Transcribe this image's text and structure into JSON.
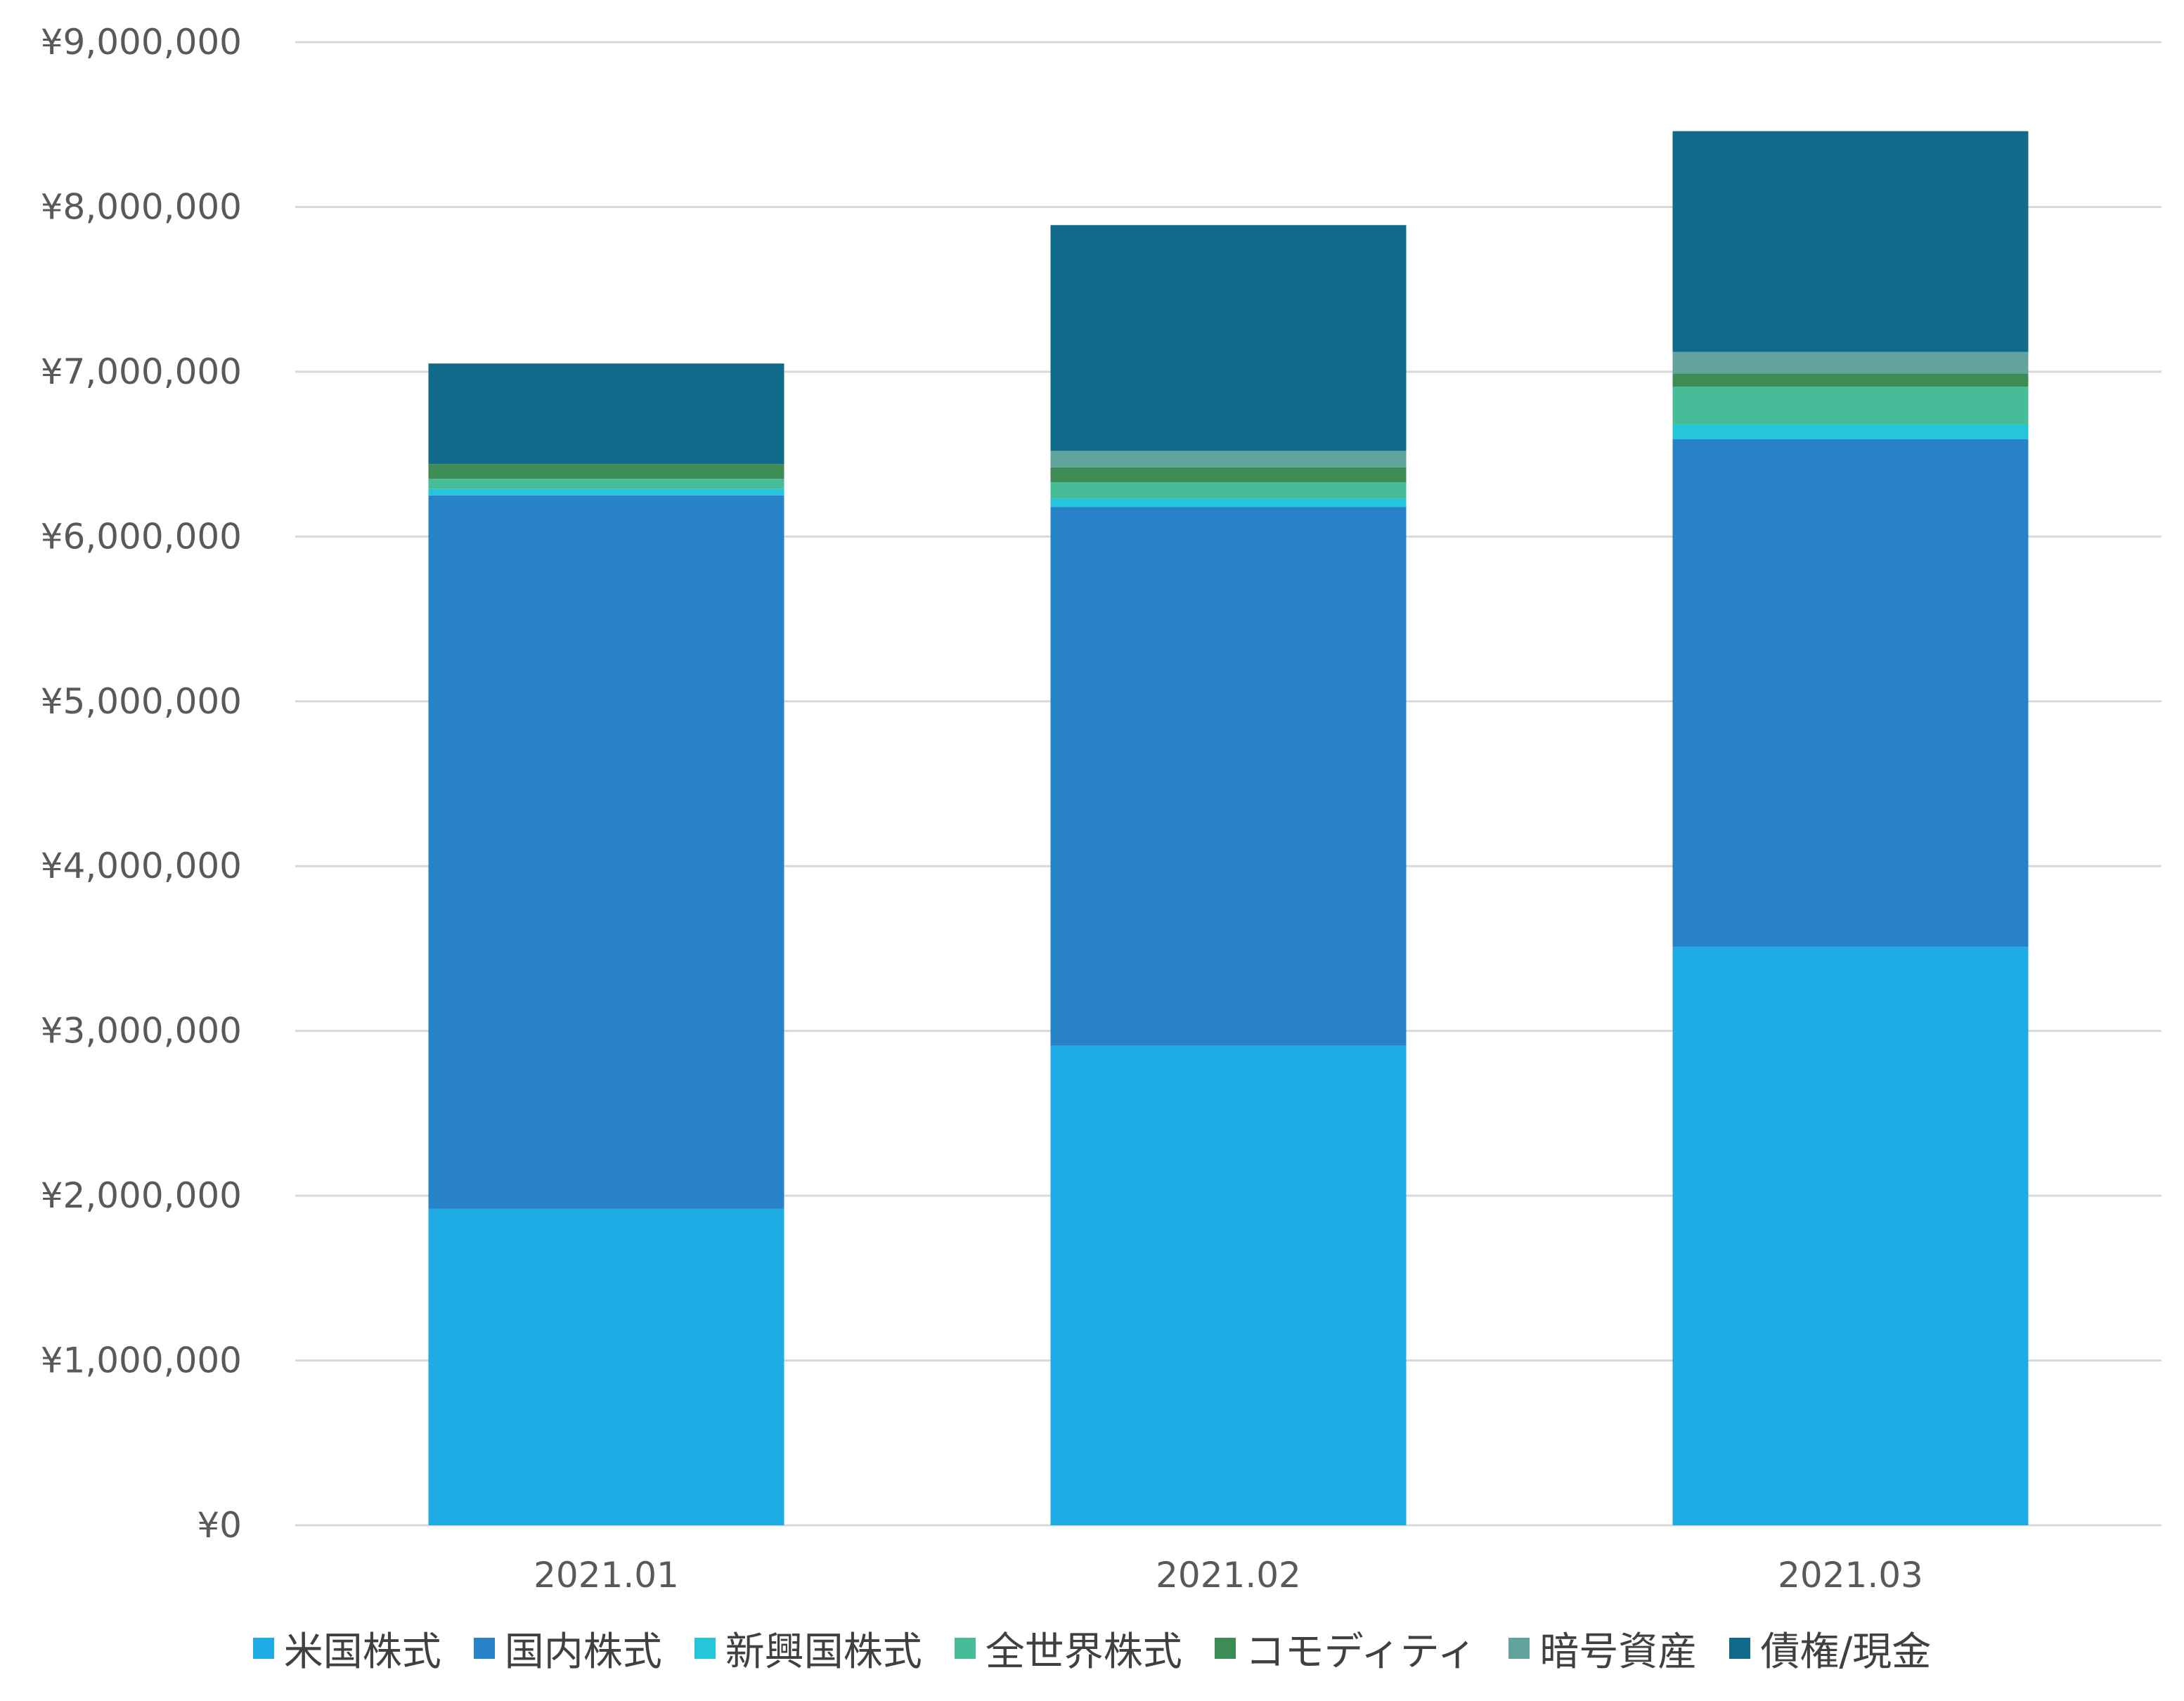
{
  "chart_data": {
    "type": "bar",
    "stacked": true,
    "categories": [
      "2021.01",
      "2021.02",
      "2021.03"
    ],
    "series": [
      {
        "name": "米国株式",
        "color": "#1FABE3",
        "values": [
          1920000,
          2910000,
          3510000
        ]
      },
      {
        "name": "国内株式",
        "color": "#2882C8",
        "values": [
          4330000,
          3270000,
          3080000
        ]
      },
      {
        "name": "新興国株式",
        "color": "#25C6DA",
        "values": [
          40000,
          50000,
          90000
        ]
      },
      {
        "name": "全世界株式",
        "color": "#46BD98",
        "values": [
          60000,
          100000,
          230000
        ]
      },
      {
        "name": "コモディティ",
        "color": "#3D8B55",
        "values": [
          90000,
          90000,
          80000
        ]
      },
      {
        "name": "暗号資産",
        "color": "#62A39E",
        "values": [
          0,
          100000,
          130000
        ]
      },
      {
        "name": "債権/現金",
        "color": "#116A8A",
        "values": [
          610000,
          1370000,
          1340000
        ]
      }
    ],
    "ylim": [
      0,
      9000000
    ],
    "yticks": [
      "¥0",
      "¥1,000,000",
      "¥2,000,000",
      "¥3,000,000",
      "¥4,000,000",
      "¥5,000,000",
      "¥6,000,000",
      "¥7,000,000",
      "¥8,000,000",
      "¥9,000,000"
    ],
    "ytick_values": [
      0,
      1000000,
      2000000,
      3000000,
      4000000,
      5000000,
      6000000,
      7000000,
      8000000,
      9000000
    ],
    "grid": true,
    "gridline_color": "#D9D9D9",
    "legend_position": "bottom"
  }
}
